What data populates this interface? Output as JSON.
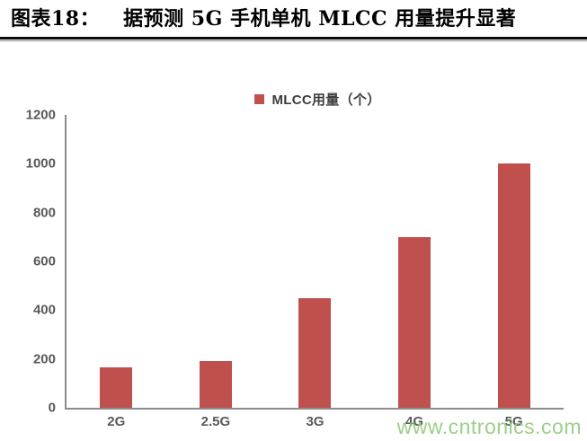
{
  "header": {
    "prefix": "图表18：",
    "title": "据预测 5G 手机单机 MLCC 用量提升显著"
  },
  "chart_data": {
    "type": "bar",
    "title": "图表18： 据预测 5G 手机单机 MLCC 用量提升显著",
    "categories": [
      "2G",
      "2.5G",
      "3G",
      "4G",
      "5G"
    ],
    "values": [
      165,
      190,
      450,
      700,
      1000
    ],
    "series": [
      {
        "name": "MLCC用量（个）",
        "values": [
          165,
          190,
          450,
          700,
          1000
        ]
      }
    ],
    "legend": [
      {
        "label": "MLCC用量（个）",
        "color": "#c0504d"
      }
    ],
    "xlabel": "",
    "ylabel": "",
    "ylim": [
      0,
      1200
    ],
    "yticks": [
      0,
      200,
      400,
      600,
      800,
      1000,
      1200
    ],
    "grid": false,
    "legend_position": "top-center",
    "bar_color": "#c0504d"
  },
  "watermark": {
    "text": "www.cntronics.com",
    "color": "#93cc80"
  },
  "colors": {
    "bar": "#c0504d",
    "axis_line": "#8c8c8c",
    "tick_label": "#595959",
    "legend_text": "#3d3d3d",
    "title_text": "#000000",
    "rule": "#0a0a0a"
  }
}
